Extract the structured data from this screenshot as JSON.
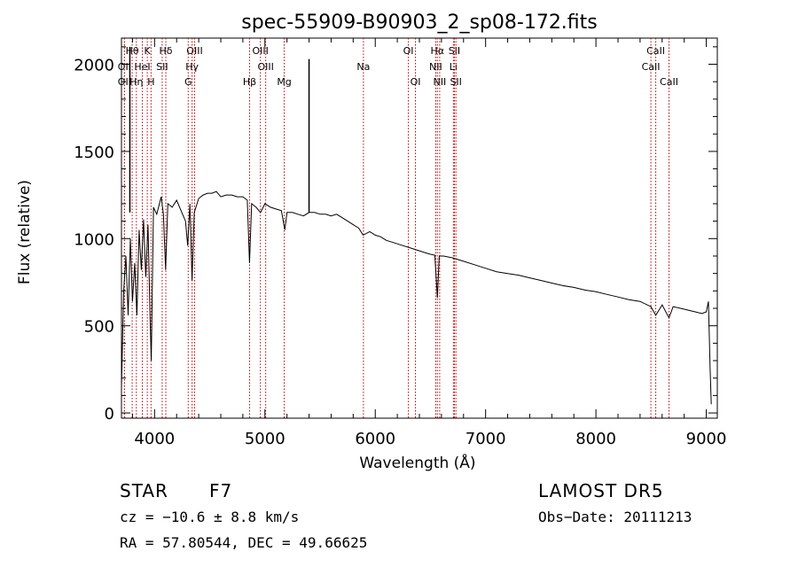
{
  "chart_data": {
    "type": "line",
    "title": "spec-55909-B90903_2_sp08-172.fits",
    "xlabel": "Wavelength (Å)",
    "ylabel": "Flux (relative)",
    "xlim": [
      3700,
      9100
    ],
    "ylim": [
      -30,
      2150
    ],
    "xticks": [
      4000,
      5000,
      6000,
      7000,
      8000,
      9000
    ],
    "yticks": [
      0,
      500,
      1000,
      1500,
      2000
    ],
    "series": [
      {
        "points": [
          [
            3700,
            150
          ],
          [
            3720,
            700
          ],
          [
            3740,
            900
          ],
          [
            3760,
            560
          ],
          [
            3780,
            1000
          ],
          [
            3800,
            640
          ],
          [
            3820,
            860
          ],
          [
            3840,
            560
          ],
          [
            3860,
            1050
          ],
          [
            3880,
            820
          ],
          [
            3900,
            1110
          ],
          [
            3920,
            780
          ],
          [
            3940,
            1080
          ],
          [
            3960,
            520
          ],
          [
            3970,
            300
          ],
          [
            3990,
            1180
          ],
          [
            4020,
            1140
          ],
          [
            4060,
            1240
          ],
          [
            4080,
            1140
          ],
          [
            4100,
            820
          ],
          [
            4120,
            1200
          ],
          [
            4160,
            1180
          ],
          [
            4200,
            1220
          ],
          [
            4240,
            1160
          ],
          [
            4280,
            1100
          ],
          [
            4300,
            960
          ],
          [
            4320,
            1200
          ],
          [
            4340,
            760
          ],
          [
            4360,
            1150
          ],
          [
            4400,
            1230
          ],
          [
            4440,
            1250
          ],
          [
            4480,
            1260
          ],
          [
            4520,
            1260
          ],
          [
            4560,
            1270
          ],
          [
            4600,
            1240
          ],
          [
            4650,
            1250
          ],
          [
            4700,
            1250
          ],
          [
            4750,
            1240
          ],
          [
            4800,
            1240
          ],
          [
            4840,
            1220
          ],
          [
            4860,
            860
          ],
          [
            4880,
            1200
          ],
          [
            4920,
            1180
          ],
          [
            4960,
            1150
          ],
          [
            5000,
            1200
          ],
          [
            5050,
            1180
          ],
          [
            5100,
            1170
          ],
          [
            5150,
            1160
          ],
          [
            5180,
            1050
          ],
          [
            5200,
            1150
          ],
          [
            5250,
            1150
          ],
          [
            5300,
            1140
          ],
          [
            5350,
            1130
          ],
          [
            5400,
            1150
          ],
          [
            5450,
            1150
          ],
          [
            5500,
            1140
          ],
          [
            5550,
            1140
          ],
          [
            5600,
            1130
          ],
          [
            5650,
            1140
          ],
          [
            5700,
            1120
          ],
          [
            5750,
            1100
          ],
          [
            5800,
            1080
          ],
          [
            5850,
            1060
          ],
          [
            5890,
            1020
          ],
          [
            5950,
            1040
          ],
          [
            6000,
            1020
          ],
          [
            6050,
            1010
          ],
          [
            6100,
            990
          ],
          [
            6150,
            980
          ],
          [
            6200,
            970
          ],
          [
            6250,
            960
          ],
          [
            6300,
            950
          ],
          [
            6350,
            940
          ],
          [
            6400,
            930
          ],
          [
            6450,
            920
          ],
          [
            6500,
            910
          ],
          [
            6540,
            905
          ],
          [
            6563,
            660
          ],
          [
            6580,
            900
          ],
          [
            6620,
            900
          ],
          [
            6700,
            890
          ],
          [
            6800,
            870
          ],
          [
            6900,
            850
          ],
          [
            7000,
            830
          ],
          [
            7100,
            810
          ],
          [
            7200,
            800
          ],
          [
            7300,
            790
          ],
          [
            7400,
            775
          ],
          [
            7500,
            760
          ],
          [
            7600,
            745
          ],
          [
            7700,
            730
          ],
          [
            7800,
            720
          ],
          [
            7900,
            705
          ],
          [
            8000,
            695
          ],
          [
            8100,
            680
          ],
          [
            8200,
            665
          ],
          [
            8300,
            650
          ],
          [
            8400,
            640
          ],
          [
            8498,
            610
          ],
          [
            8542,
            560
          ],
          [
            8600,
            620
          ],
          [
            8662,
            545
          ],
          [
            8700,
            610
          ],
          [
            8800,
            595
          ],
          [
            8900,
            580
          ],
          [
            8960,
            570
          ],
          [
            9000,
            580
          ],
          [
            9020,
            640
          ],
          [
            9035,
            250
          ],
          [
            9045,
            50
          ]
        ]
      }
    ],
    "spikes": [
      [
        5400,
        2030
      ],
      [
        3776,
        2100
      ]
    ],
    "lines": [
      {
        "label": "Hθ",
        "x": 3797,
        "row": 0
      },
      {
        "label": "K",
        "x": 3934,
        "row": 0
      },
      {
        "label": "Hδ",
        "x": 4102,
        "row": 0
      },
      {
        "label": "OIII",
        "x": 4363,
        "row": 0
      },
      {
        "label": "OIII",
        "x": 4959,
        "row": 0
      },
      {
        "label": "OI",
        "x": 6300,
        "row": 0
      },
      {
        "label": "Hα",
        "x": 6563,
        "row": 0
      },
      {
        "label": "SII",
        "x": 6717,
        "row": 0
      },
      {
        "label": "CaII",
        "x": 8542,
        "row": 0
      },
      {
        "label": "OII",
        "x": 3727,
        "row": 1
      },
      {
        "label": "HeI",
        "x": 3889,
        "row": 1
      },
      {
        "label": "SII",
        "x": 4069,
        "row": 1
      },
      {
        "label": "Hγ",
        "x": 4340,
        "row": 1
      },
      {
        "label": "OIII",
        "x": 5007,
        "row": 1
      },
      {
        "label": "Na",
        "x": 5893,
        "row": 1
      },
      {
        "label": "NII",
        "x": 6548,
        "row": 1
      },
      {
        "label": "Li",
        "x": 6708,
        "row": 1
      },
      {
        "label": "CaII",
        "x": 8498,
        "row": 1
      },
      {
        "label": "OII",
        "x": 3727,
        "row": 2
      },
      {
        "label": "Hη",
        "x": 3835,
        "row": 2
      },
      {
        "label": "H",
        "x": 3968,
        "row": 2
      },
      {
        "label": "G",
        "x": 4305,
        "row": 2
      },
      {
        "label": "Hβ",
        "x": 4861,
        "row": 2
      },
      {
        "label": "Mg",
        "x": 5175,
        "row": 2
      },
      {
        "label": "OI",
        "x": 6364,
        "row": 2
      },
      {
        "label": "NII",
        "x": 6584,
        "row": 2
      },
      {
        "label": "SII",
        "x": 6731,
        "row": 2
      },
      {
        "label": "CaII",
        "x": 8662,
        "row": 2
      }
    ],
    "line_color": "#c00000"
  },
  "info": {
    "class_label": "STAR",
    "subclass": "F7",
    "survey": "LAMOST DR5",
    "cz": "cz = −10.6 ± 8.8 km/s",
    "obs_date": "Obs−Date: 20111213",
    "coords": "RA =  57.80544, DEC =  49.66625"
  }
}
